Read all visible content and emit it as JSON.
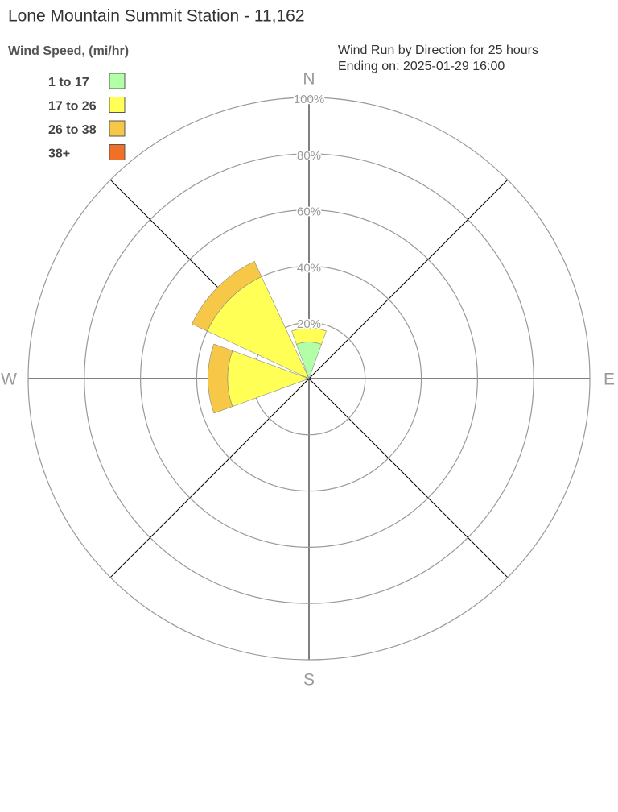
{
  "chart_data": {
    "type": "windrose",
    "title": "Lone Mountain Summit Station - 11,162",
    "subtitle": [
      "Wind Run by Direction for 25 hours",
      "Ending on: 2025-01-29 16:00"
    ],
    "legend_title": "Wind Speed, (mi/hr)",
    "categories": [
      "N",
      null,
      "E",
      null,
      "S",
      null,
      "W",
      null
    ],
    "series": [
      {
        "name": "1 to 17",
        "color": "#b3ffa8",
        "values": [
          13,
          0,
          0,
          0,
          0,
          0,
          1,
          1
        ]
      },
      {
        "name": "17 to 26",
        "color": "#ffff55",
        "values": [
          5,
          0,
          0,
          0,
          0,
          0,
          28,
          39
        ]
      },
      {
        "name": "26 to 38",
        "color": "#f7c848",
        "values": [
          0,
          0,
          0,
          0,
          0,
          0,
          7,
          6
        ]
      },
      {
        "name": "38+",
        "color": "#f07028",
        "values": [
          0,
          0,
          0,
          0,
          0,
          0,
          0,
          0
        ]
      }
    ],
    "rlim": [
      0,
      100
    ],
    "rticks": [
      {
        "value": 20,
        "label": "20%"
      },
      {
        "value": 40,
        "label": "40%"
      },
      {
        "value": 60,
        "label": "60%"
      },
      {
        "value": 80,
        "label": "80%"
      },
      {
        "value": 100,
        "label": "100%"
      }
    ],
    "grid": true
  }
}
